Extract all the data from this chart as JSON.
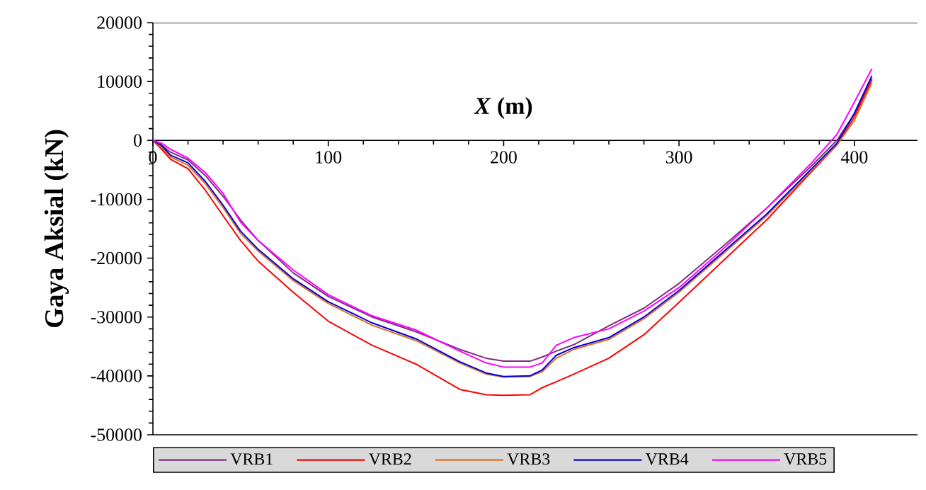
{
  "chart_data": {
    "type": "line",
    "xlabel": "*X* (m)",
    "ylabel": "Gaya Aksial (kN)",
    "x": [
      0,
      5,
      10,
      20,
      30,
      40,
      50,
      60,
      80,
      100,
      125,
      150,
      175,
      190,
      200,
      215,
      222,
      230,
      240,
      260,
      280,
      300,
      325,
      350,
      375,
      390,
      400,
      410
    ],
    "series": [
      {
        "name": "VRB1",
        "color": "#7b2f7f",
        "values": [
          0,
          -800,
          -2000,
          -3300,
          -6000,
          -9500,
          -13500,
          -17000,
          -22500,
          -26500,
          -30000,
          -32500,
          -35500,
          -37000,
          -37500,
          -37500,
          -36800,
          -35800,
          -34700,
          -31500,
          -28500,
          -24300,
          -18000,
          -11500,
          -4500,
          0,
          4500,
          10500
        ]
      },
      {
        "name": "VRB2",
        "color": "#ff0000",
        "values": [
          0,
          -1500,
          -3200,
          -4800,
          -8500,
          -12800,
          -17000,
          -20500,
          -25800,
          -30700,
          -34800,
          -38000,
          -42300,
          -43200,
          -43300,
          -43200,
          -42000,
          -41000,
          -39700,
          -37000,
          -33000,
          -27500,
          -20500,
          -13500,
          -5500,
          -800,
          4000,
          10300
        ]
      },
      {
        "name": "VRB3",
        "color": "#e07020",
        "values": [
          0,
          -1200,
          -2800,
          -4200,
          -7400,
          -11400,
          -15800,
          -18800,
          -23800,
          -27700,
          -31400,
          -34000,
          -37800,
          -39700,
          -40200,
          -40100,
          -39300,
          -37000,
          -35500,
          -33800,
          -30300,
          -25800,
          -19300,
          -12800,
          -5300,
          -800,
          3400,
          9800
        ]
      },
      {
        "name": "VRB4",
        "color": "#0000dd",
        "values": [
          0,
          -900,
          -2500,
          -3800,
          -7000,
          -11000,
          -15400,
          -18500,
          -23500,
          -27400,
          -31000,
          -33700,
          -37600,
          -39500,
          -40100,
          -40000,
          -39000,
          -36500,
          -35200,
          -33500,
          -30000,
          -25500,
          -19000,
          -12500,
          -5000,
          -500,
          4600,
          11000
        ]
      },
      {
        "name": "VRB5",
        "color": "#ff00ff",
        "values": [
          0,
          -500,
          -1500,
          -3000,
          -5500,
          -9000,
          -13900,
          -17000,
          -22000,
          -26200,
          -29800,
          -32200,
          -35800,
          -37800,
          -38500,
          -38500,
          -37800,
          -34800,
          -33500,
          -32000,
          -29000,
          -25000,
          -18500,
          -11500,
          -4000,
          1000,
          6500,
          12200
        ]
      }
    ],
    "xlim": [
      0,
      436
    ],
    "ylim": [
      -50000,
      20000
    ],
    "xticks": [
      0,
      100,
      200,
      300,
      400
    ],
    "yticks": [
      -50000,
      -40000,
      -30000,
      -20000,
      -10000,
      0,
      10000,
      20000
    ],
    "legend": "bottom",
    "grid": false,
    "marker": "none",
    "line_style": "solid"
  }
}
